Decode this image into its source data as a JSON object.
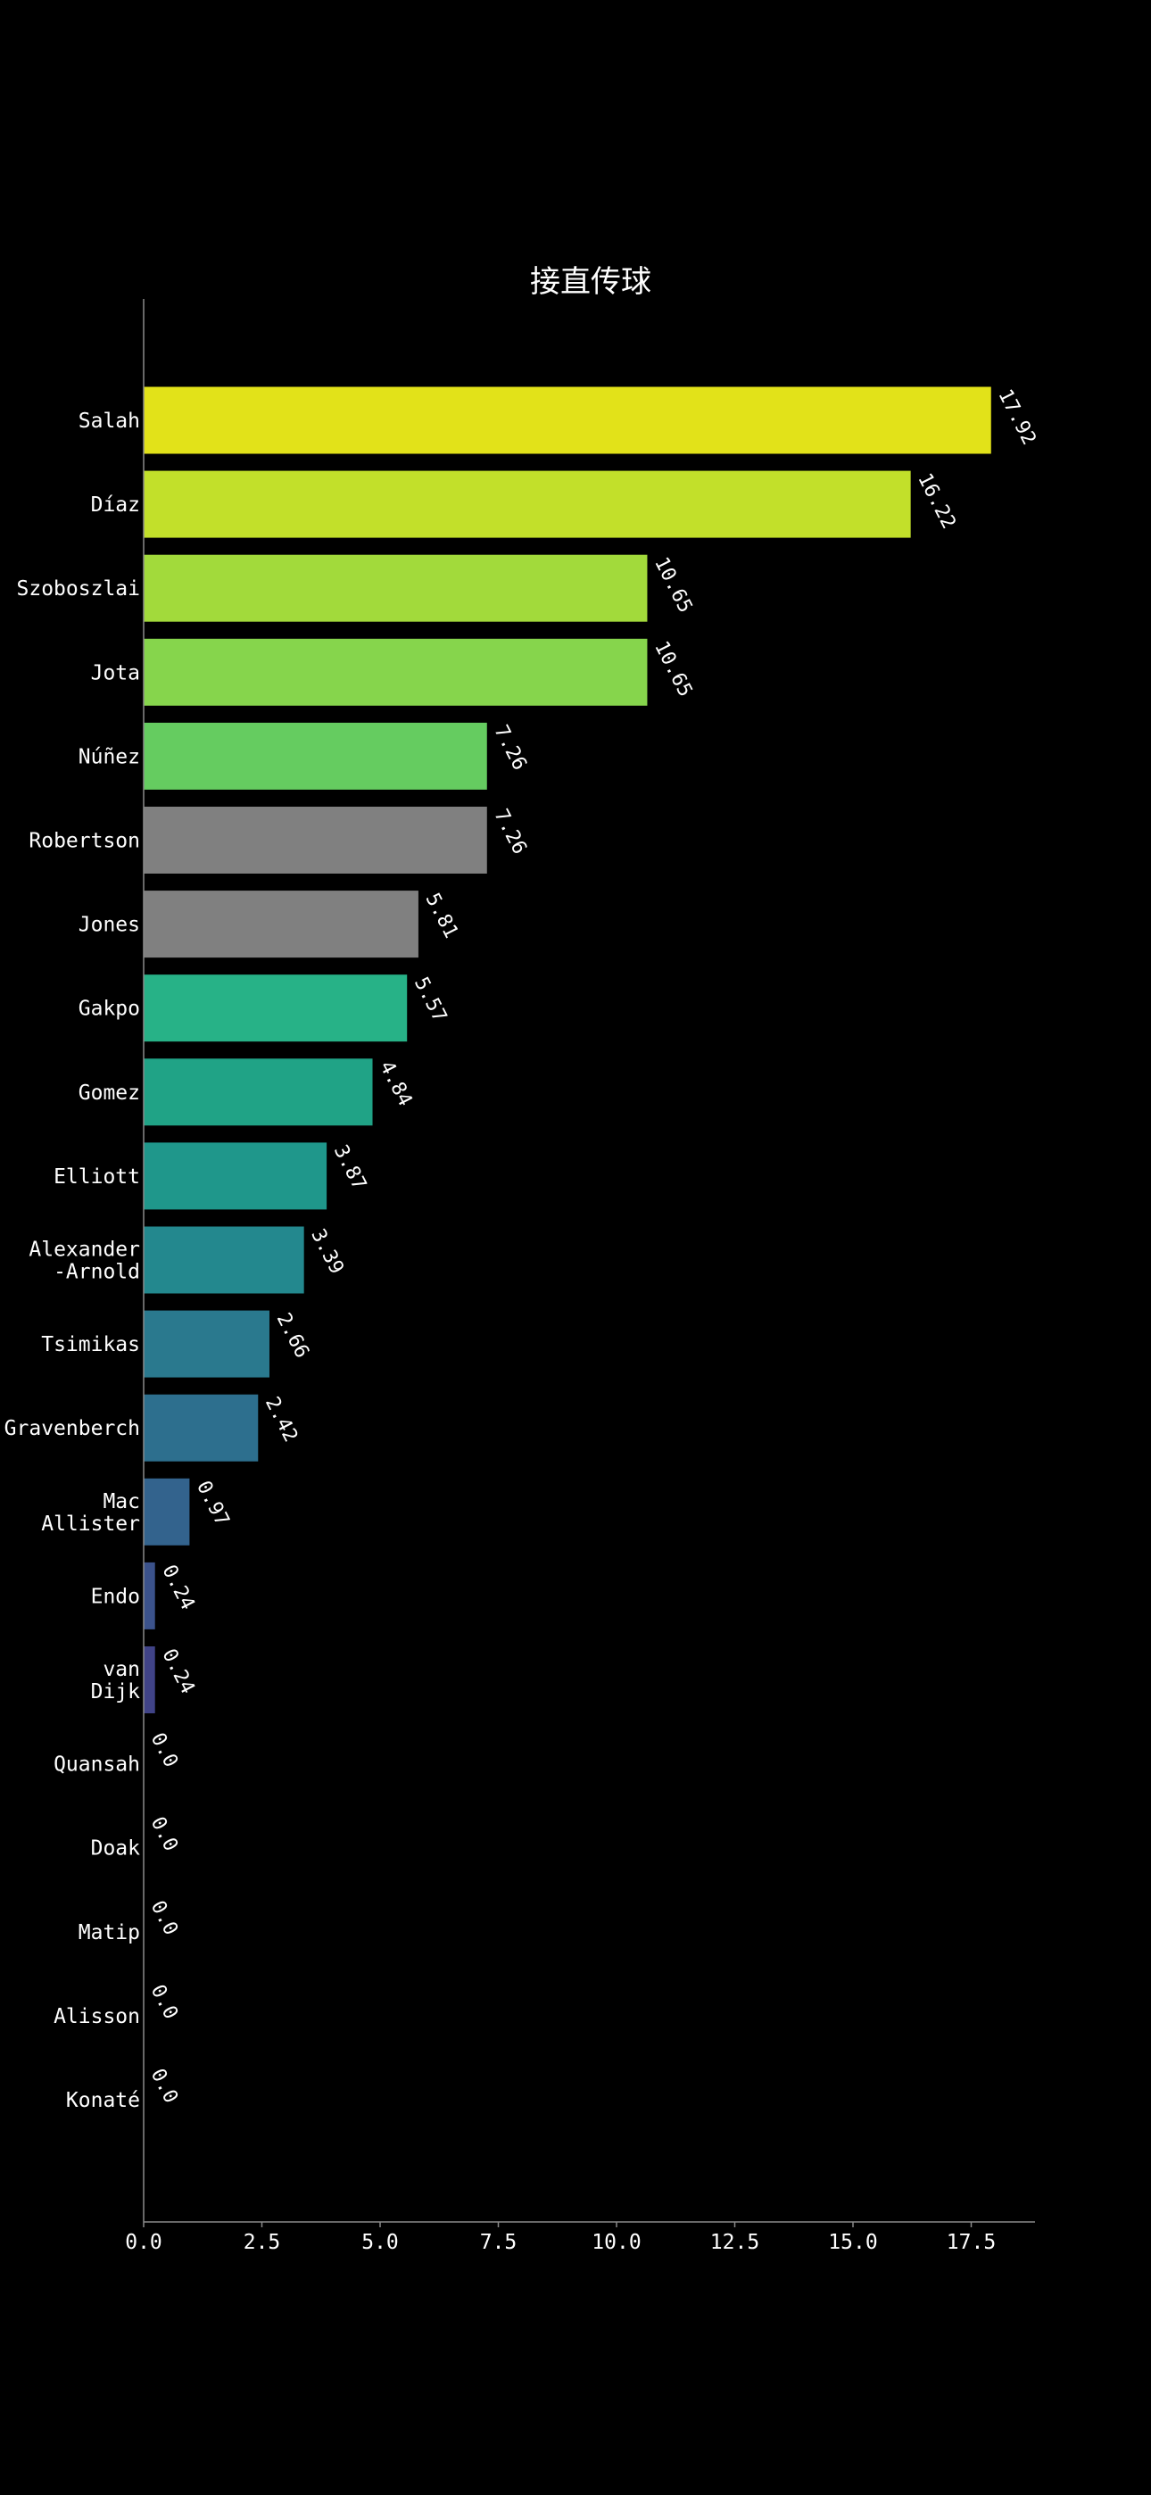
{
  "chart_data": {
    "type": "bar",
    "orientation": "horizontal",
    "title": "接直传球",
    "xlabel": "",
    "ylabel": "",
    "xlim": [
      0,
      18.9
    ],
    "xticks": [
      0.0,
      2.5,
      5.0,
      7.5,
      10.0,
      12.5,
      15.0,
      17.5
    ],
    "xtick_labels": [
      "0.0",
      "2.5",
      "5.0",
      "7.5",
      "10.0",
      "12.5",
      "15.0",
      "17.5"
    ],
    "grid": false,
    "legend": "none",
    "categories": [
      [
        "Salah"
      ],
      [
        "Díaz"
      ],
      [
        "Szoboszlai"
      ],
      [
        "Jota"
      ],
      [
        "Núñez"
      ],
      [
        "Robertson"
      ],
      [
        "Jones"
      ],
      [
        "Gakpo"
      ],
      [
        "Gomez"
      ],
      [
        "Elliott"
      ],
      [
        "Alexander",
        "-Arnold"
      ],
      [
        "Tsimikas"
      ],
      [
        "Gravenberch"
      ],
      [
        "Mac",
        "Allister"
      ],
      [
        "Endo"
      ],
      [
        "van",
        "Dijk"
      ],
      [
        "Quansah"
      ],
      [
        "Doak"
      ],
      [
        "Matip"
      ],
      [
        "Alisson"
      ],
      [
        "Konaté"
      ]
    ],
    "values": [
      17.92,
      16.22,
      10.65,
      10.65,
      7.26,
      7.26,
      5.81,
      5.57,
      4.84,
      3.87,
      3.39,
      2.66,
      2.42,
      0.97,
      0.24,
      0.24,
      0.0,
      0.0,
      0.0,
      0.0,
      0.0
    ],
    "value_labels": [
      "17.92",
      "16.22",
      "10.65",
      "10.65",
      "7.26",
      "7.26",
      "5.81",
      "5.57",
      "4.84",
      "3.87",
      "3.39",
      "2.66",
      "2.42",
      "0.97",
      "0.24",
      "0.24",
      "0.0",
      "0.0",
      "0.0",
      "0.0",
      "0.0"
    ],
    "bar_colors": [
      "#e2e219",
      "#c2e02a",
      "#a2da3b",
      "#86d54c",
      "#65cc60",
      "#808080",
      "#808080",
      "#27b287",
      "#20a386",
      "#1f978b",
      "#23888e",
      "#2a798e",
      "#2d6f8e",
      "#33638d",
      "#3b528b",
      "#404387",
      "#443a83",
      "#453781",
      "#46307e",
      "#472a7a",
      "#48287a"
    ],
    "background_color": "#000000",
    "text_color": "#ffffff",
    "axis_color": "#8a8a8a"
  }
}
